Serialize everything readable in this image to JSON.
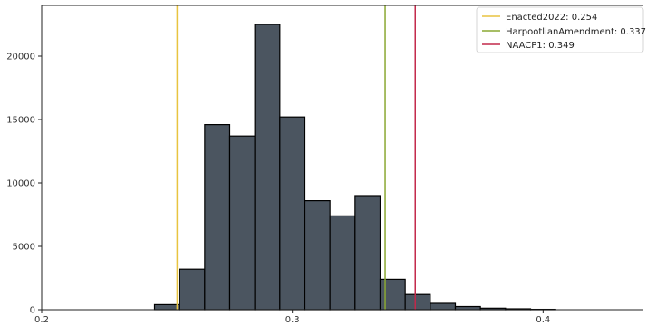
{
  "chart_data": {
    "type": "bar",
    "title": "",
    "xlabel": "",
    "ylabel": "",
    "xlim": [
      0.2,
      0.44
    ],
    "ylim": [
      0,
      24000
    ],
    "x_ticks": [
      0.2,
      0.3,
      0.4
    ],
    "x_tick_labels": [
      "0.2",
      "0.3",
      "0.4"
    ],
    "y_ticks": [
      0,
      5000,
      10000,
      15000,
      20000
    ],
    "y_tick_labels": [
      "0",
      "5000",
      "10000",
      "15000",
      "20000"
    ],
    "grid": false,
    "bar_color": "#4b5560",
    "bar_edge_color": "#000000",
    "bin_width": 0.01,
    "bins": [
      {
        "start": 0.245,
        "count": 400
      },
      {
        "start": 0.255,
        "count": 3200
      },
      {
        "start": 0.265,
        "count": 14600
      },
      {
        "start": 0.275,
        "count": 13700
      },
      {
        "start": 0.285,
        "count": 22500
      },
      {
        "start": 0.295,
        "count": 15200
      },
      {
        "start": 0.305,
        "count": 8600
      },
      {
        "start": 0.315,
        "count": 7400
      },
      {
        "start": 0.325,
        "count": 9000
      },
      {
        "start": 0.335,
        "count": 2400
      },
      {
        "start": 0.345,
        "count": 1200
      },
      {
        "start": 0.355,
        "count": 500
      },
      {
        "start": 0.365,
        "count": 250
      },
      {
        "start": 0.375,
        "count": 120
      },
      {
        "start": 0.385,
        "count": 70
      },
      {
        "start": 0.395,
        "count": 30
      }
    ],
    "reference_lines": [
      {
        "label": "Enacted2022: 0.254",
        "x": 0.254,
        "color": "#e8c440"
      },
      {
        "label": "HarpootlianAmendment: 0.337",
        "x": 0.337,
        "color": "#8aa832"
      },
      {
        "label": "NAACP1: 0.349",
        "x": 0.349,
        "color": "#c2284a"
      }
    ],
    "legend_position": "top-right"
  }
}
